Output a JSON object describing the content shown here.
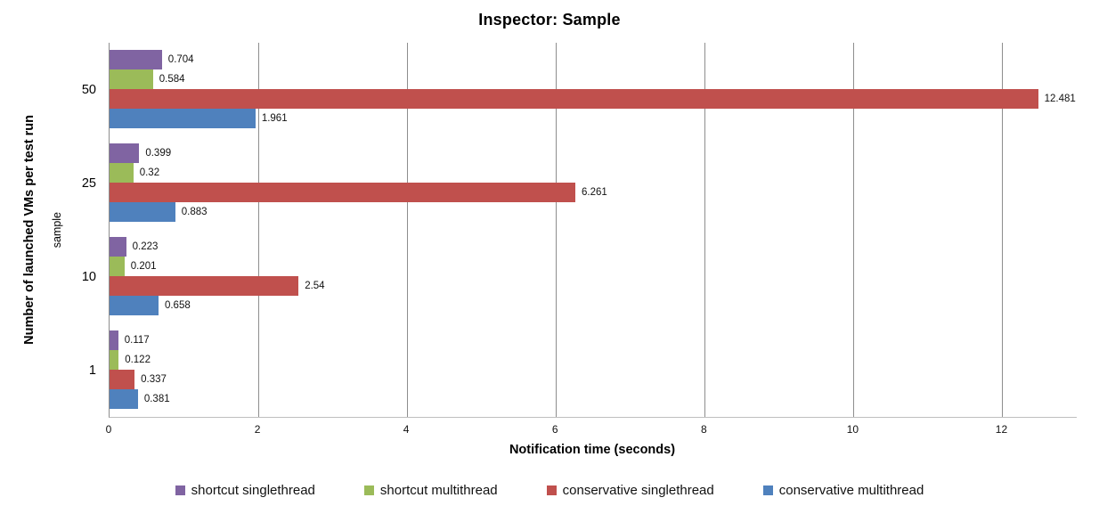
{
  "chart_data": {
    "type": "bar",
    "orientation": "horizontal",
    "title": "Inspector: Sample",
    "xlabel": "Notification time (seconds)",
    "ylabel": "Number of launched VMs per test run",
    "ylabel_inner": "sample",
    "categories": [
      "50",
      "25",
      "10",
      "1"
    ],
    "series": [
      {
        "name": "shortcut singlethread",
        "color": "#8064A2",
        "values": [
          0.704,
          0.399,
          0.223,
          0.117
        ]
      },
      {
        "name": "shortcut multithread",
        "color": "#9BBB59",
        "values": [
          0.584,
          0.32,
          0.201,
          0.122
        ]
      },
      {
        "name": "conservative singlethread",
        "color": "#C0504D",
        "values": [
          12.481,
          6.261,
          2.54,
          0.337
        ]
      },
      {
        "name": "conservative multithread",
        "color": "#4F81BD",
        "values": [
          1.961,
          0.883,
          0.658,
          0.381
        ]
      }
    ],
    "xlim": [
      0,
      13
    ],
    "xticks": [
      0,
      2,
      4,
      6,
      8,
      10,
      12
    ],
    "grid": true,
    "legend_position": "bottom",
    "colors": {
      "gridline": "#8e8e8e",
      "axis": "#bfbfbf",
      "text": "#000000"
    }
  }
}
